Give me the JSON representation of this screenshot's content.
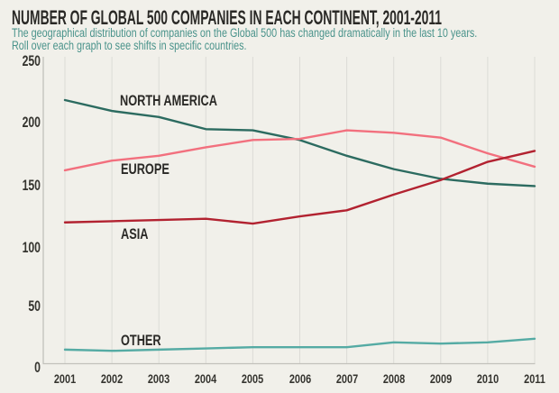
{
  "header": {
    "title": "NUMBER OF GLOBAL 500 COMPANIES IN EACH CONTINENT, 2001-2011",
    "subtitle_line1": "The geographical distribution of companies on the Global 500 has changed dramatically in the last 10 years.",
    "subtitle_line2": "Roll over each graph to see shifts in specific countries."
  },
  "colors": {
    "background": "#f1f0ea",
    "title_text": "#2a2926",
    "subtitle_text": "#4a938b",
    "tick_text": "#35342f",
    "gridline": "#dcdbd6",
    "axis_line": "#c2c1bb",
    "north_america_line": "#2c6b60",
    "europe_line": "#f2707e",
    "asia_line": "#b22230",
    "other_line": "#55aba4"
  },
  "chart_data": {
    "type": "line",
    "title": "NUMBER OF GLOBAL 500 COMPANIES IN EACH CONTINENT, 2001-2011",
    "x": [
      2001,
      2002,
      2003,
      2004,
      2005,
      2006,
      2007,
      2008,
      2009,
      2010,
      2011
    ],
    "xticks": [
      "2001",
      "2002",
      "2003",
      "2004",
      "2005",
      "2006",
      "2007",
      "2008",
      "2009",
      "2010",
      "2011"
    ],
    "yticks": [
      250,
      200,
      150,
      100,
      50,
      0
    ],
    "ylim": [
      0,
      250
    ],
    "grid": "vertical-only",
    "legend": "inline-labels",
    "series": [
      {
        "name": "NORTH AMERICA",
        "color": "#2c6b60",
        "values": [
          218,
          209,
          204,
          194,
          193,
          185,
          172,
          161,
          153,
          149,
          147
        ]
      },
      {
        "name": "EUROPE",
        "color": "#f2707e",
        "values": [
          160,
          168,
          172,
          179,
          185,
          186,
          193,
          191,
          187,
          174,
          163
        ]
      },
      {
        "name": "ASIA",
        "color": "#b22230",
        "values": [
          117,
          118,
          119,
          120,
          116,
          122,
          127,
          140,
          152,
          167,
          176
        ]
      },
      {
        "name": "OTHER",
        "color": "#55aba4",
        "values": [
          12,
          11,
          12,
          13,
          14,
          14,
          14,
          18,
          17,
          18,
          21
        ]
      }
    ]
  }
}
